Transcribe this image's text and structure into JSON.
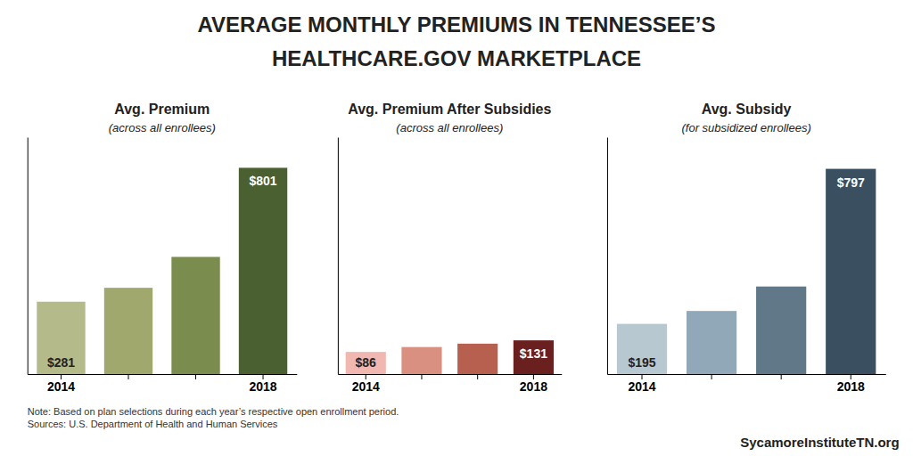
{
  "title": "AVERAGE MONTHLY PREMIUMS IN TENNESSEE’S\nHEALTHCARE.GOV MARKETPLACE",
  "annotations": [
    "Note: Based on plan selections during each year’s respective open enrollment period.\nSources: U.S. Department of Health and Human Services",
    "SycamoreInstituteTN.org"
  ],
  "chart_data": [
    {
      "type": "bar",
      "title": "Avg. Premium",
      "subtitle": "(across all enrollees)",
      "categories": [
        "2014",
        null,
        null,
        "2018"
      ],
      "values": [
        281,
        335,
        455,
        801
      ],
      "colors": [
        "#b5ba8a",
        "#a0a86e",
        "#7a8c4e",
        "#4a6030"
      ],
      "ylim": [
        0,
        920
      ],
      "tick_labels": "x",
      "data_labels": true,
      "value_labels": [
        "$281",
        null,
        null,
        "$801"
      ]
    },
    {
      "type": "bar",
      "title": "Avg. Premium After Subsidies",
      "subtitle": "(across all enrollees)",
      "categories": [
        "2014",
        null,
        null,
        "2018"
      ],
      "values": [
        86,
        105,
        118,
        131
      ],
      "colors": [
        "#f0b8b0",
        "#d99080",
        "#b86050",
        "#6b2020"
      ],
      "ylim": [
        0,
        920
      ],
      "tick_labels": "x",
      "data_labels": true,
      "value_labels": [
        "$86",
        null,
        null,
        "$131"
      ]
    },
    {
      "type": "bar",
      "title": "Avg. Subsidy",
      "subtitle": "(for subsidized enrollees)",
      "categories": [
        "2014",
        null,
        null,
        "2018"
      ],
      "values": [
        195,
        245,
        340,
        797
      ],
      "colors": [
        "#b8c8d0",
        "#90a8b8",
        "#607888",
        "#3a5060"
      ],
      "ylim": [
        0,
        920
      ],
      "tick_labels": "x",
      "data_labels": true,
      "value_labels": [
        "$195",
        null,
        null,
        "$797"
      ]
    }
  ]
}
